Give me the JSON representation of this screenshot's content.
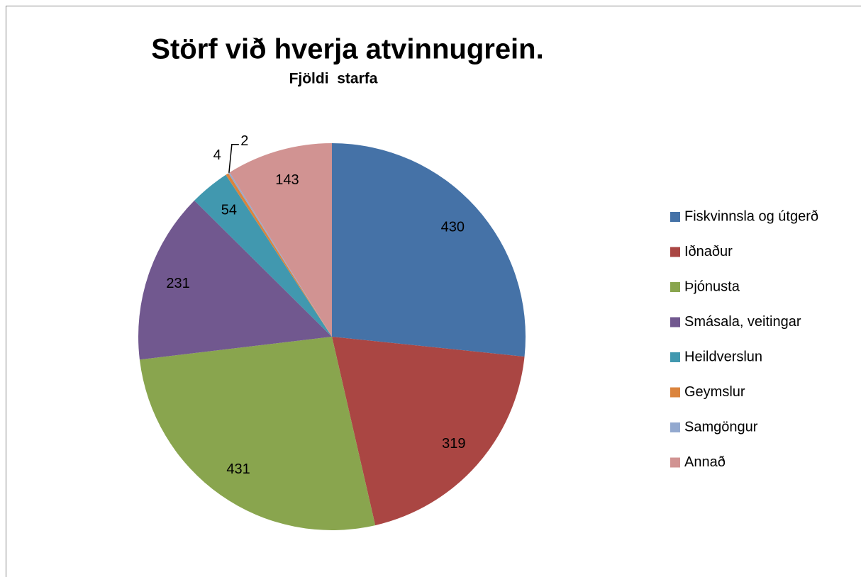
{
  "chart_data": {
    "type": "pie",
    "title": "Störf við hverja atvinnugrein.",
    "subtitle": "Fjöldi  starfa",
    "categories": [
      "Fiskvinnsla og útgerð",
      "Iðnaður",
      "Þjónusta",
      "Smásala, veitingar",
      "Heildverslun",
      "Geymslur",
      "Samgöngur",
      "Annað"
    ],
    "values": [
      430,
      319,
      431,
      231,
      54,
      4,
      2,
      143
    ],
    "colors": [
      "#4572a7",
      "#aa4643",
      "#89a54e",
      "#71588f",
      "#4198af",
      "#db843d",
      "#93a9cf",
      "#d19392"
    ],
    "legend": "right"
  }
}
